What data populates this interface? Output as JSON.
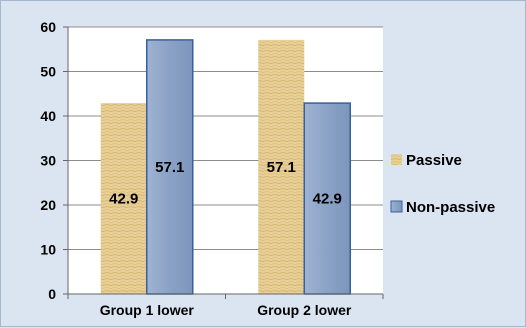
{
  "chart_data": {
    "type": "bar",
    "categories": [
      "Group 1 lower",
      "Group 2 lower"
    ],
    "series": [
      {
        "name": "Passive",
        "values": [
          42.9,
          57.1
        ]
      },
      {
        "name": "Non-passive",
        "values": [
          57.1,
          42.9
        ]
      }
    ],
    "data_labels": [
      [
        "42.9",
        "57.1"
      ],
      [
        "57.1",
        "42.9"
      ]
    ],
    "ylim": [
      0,
      60
    ],
    "yticks": [
      0,
      10,
      20,
      30,
      40,
      50,
      60
    ],
    "grid": true,
    "legend_position": "right",
    "colors": {
      "passive": "#e8cf95",
      "passive_texture": "#d9bb78",
      "non_passive": "#8fa6c7",
      "non_passive_edge": "#3a5f9e",
      "plot_background": "#ffffff",
      "chart_background": "#dbe5f1",
      "gridline": "#8c8c8c"
    }
  }
}
